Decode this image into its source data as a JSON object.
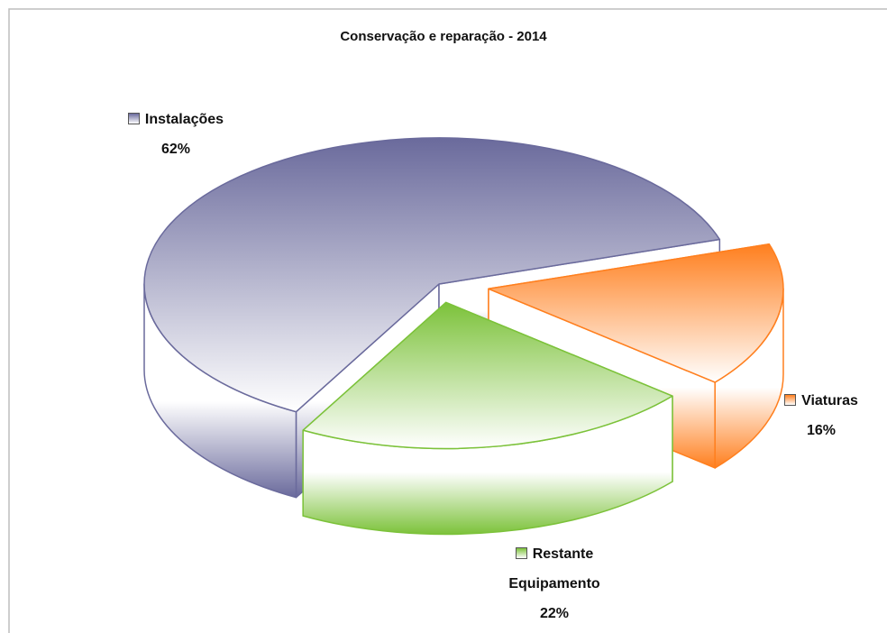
{
  "chart_data": {
    "type": "pie3d",
    "title": "Conservação e reparação - 2014",
    "categories": [
      "Instalações",
      "Viaturas",
      "Restante Equipamento"
    ],
    "values": [
      62,
      16,
      22
    ],
    "value_labels": [
      "62%",
      "16%",
      "22%"
    ],
    "colors": [
      "#6a6a9c",
      "#ff7f1e",
      "#7cc23a"
    ]
  }
}
